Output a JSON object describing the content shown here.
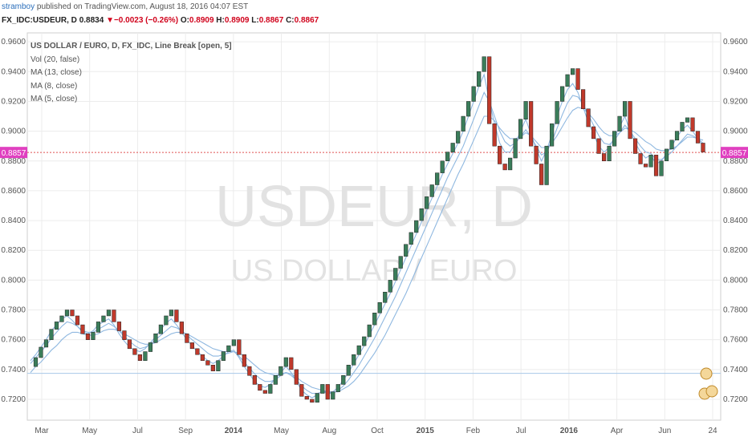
{
  "header": {
    "publisher": "stramboy",
    "published_text": " published on TradingView.com, August 18, 2016 04:07 EST"
  },
  "quote": {
    "symbol": "FX_IDC:USDEUR, D",
    "last": "0.8834",
    "change_arrow": "▼",
    "change": "−0.0023 (−0.26%)",
    "o_label": "O:",
    "o_value": "0.8909",
    "h_label": "H:",
    "h_value": "0.8909",
    "l_label": "L:",
    "l_value": "0.8867",
    "c_label": "C:",
    "c_value": "0.8867"
  },
  "legend": {
    "title": "US DOLLAR / EURO, D, FX_IDC, Line Break [open, 5]",
    "studies": [
      "Vol (20, false)",
      "MA (13, close)",
      "MA (8, close)",
      "MA (5, close)"
    ]
  },
  "watermark": {
    "symbol": "USDEUR, D",
    "name": "US DOLLAR / EURO"
  },
  "price_marker": {
    "value": 0.8857,
    "label": "0.8857",
    "color": "#e040c0"
  },
  "colors": {
    "up": "#3a7d5a",
    "down": "#c0392b",
    "ma": "#8fb8e0",
    "grid": "#ececec",
    "price_line": "#e05050"
  },
  "chart_data": {
    "type": "line break",
    "y_range": [
      0.706,
      0.966
    ],
    "y_ticks": [
      "0.9600",
      "0.9400",
      "0.9200",
      "0.9000",
      "0.8800",
      "0.8600",
      "0.8400",
      "0.8200",
      "0.8000",
      "0.7800",
      "0.7600",
      "0.7400",
      "0.7200"
    ],
    "x_labels": [
      "Mar",
      "May",
      "Jul",
      "Sep",
      "2014",
      "May",
      "Aug",
      "Oct",
      "2015",
      "Feb",
      "Jul",
      "2016",
      "Apr",
      "Jun",
      "24"
    ],
    "x_label_bold": [
      false,
      false,
      false,
      false,
      true,
      false,
      false,
      false,
      true,
      false,
      false,
      true,
      false,
      false,
      false
    ],
    "horizontal_line": 0.7374,
    "series": [
      0.742,
      0.748,
      0.755,
      0.76,
      0.767,
      0.772,
      0.776,
      0.78,
      0.776,
      0.77,
      0.764,
      0.76,
      0.765,
      0.772,
      0.776,
      0.78,
      0.772,
      0.766,
      0.76,
      0.754,
      0.75,
      0.746,
      0.752,
      0.758,
      0.764,
      0.77,
      0.776,
      0.78,
      0.772,
      0.764,
      0.758,
      0.754,
      0.75,
      0.746,
      0.743,
      0.739,
      0.746,
      0.752,
      0.756,
      0.76,
      0.75,
      0.742,
      0.736,
      0.73,
      0.726,
      0.724,
      0.73,
      0.736,
      0.742,
      0.748,
      0.74,
      0.73,
      0.722,
      0.72,
      0.718,
      0.724,
      0.73,
      0.72,
      0.725,
      0.73,
      0.736,
      0.743,
      0.75,
      0.756,
      0.762,
      0.77,
      0.778,
      0.785,
      0.792,
      0.8,
      0.808,
      0.816,
      0.824,
      0.832,
      0.84,
      0.848,
      0.856,
      0.864,
      0.872,
      0.88,
      0.886,
      0.892,
      0.9,
      0.91,
      0.92,
      0.93,
      0.94,
      0.95,
      0.905,
      0.89,
      0.878,
      0.874,
      0.882,
      0.895,
      0.908,
      0.92,
      0.89,
      0.878,
      0.864,
      0.89,
      0.905,
      0.92,
      0.93,
      0.938,
      0.942,
      0.928,
      0.915,
      0.903,
      0.895,
      0.885,
      0.88,
      0.89,
      0.9,
      0.91,
      0.92,
      0.895,
      0.885,
      0.878,
      0.876,
      0.884,
      0.87,
      0.88,
      0.888,
      0.894,
      0.9,
      0.906,
      0.909,
      0.9,
      0.892,
      0.886
    ],
    "ma_fast": [
      0.746,
      0.75,
      0.755,
      0.76,
      0.766,
      0.77,
      0.774,
      0.776,
      0.773,
      0.769,
      0.765,
      0.764,
      0.766,
      0.77,
      0.772,
      0.774,
      0.77,
      0.764,
      0.759,
      0.755,
      0.753,
      0.752,
      0.754,
      0.758,
      0.762,
      0.767,
      0.771,
      0.774,
      0.77,
      0.765,
      0.76,
      0.756,
      0.752,
      0.749,
      0.746,
      0.744,
      0.746,
      0.749,
      0.752,
      0.753,
      0.748,
      0.742,
      0.737,
      0.732,
      0.729,
      0.728,
      0.73,
      0.734,
      0.738,
      0.742,
      0.738,
      0.732,
      0.726,
      0.723,
      0.721,
      0.723,
      0.726,
      0.724,
      0.725,
      0.728,
      0.733,
      0.738,
      0.744,
      0.75,
      0.756,
      0.763,
      0.77,
      0.777,
      0.784,
      0.791,
      0.799,
      0.807,
      0.815,
      0.823,
      0.831,
      0.839,
      0.847,
      0.855,
      0.863,
      0.871,
      0.878,
      0.885,
      0.892,
      0.9,
      0.91,
      0.92,
      0.93,
      0.938,
      0.92,
      0.905,
      0.892,
      0.886,
      0.886,
      0.892,
      0.9,
      0.908,
      0.898,
      0.888,
      0.88,
      0.887,
      0.898,
      0.91,
      0.92,
      0.928,
      0.932,
      0.926,
      0.916,
      0.906,
      0.898,
      0.89,
      0.886,
      0.889,
      0.896,
      0.903,
      0.91,
      0.9,
      0.892,
      0.886,
      0.882,
      0.884,
      0.878,
      0.88,
      0.885,
      0.89,
      0.896,
      0.901,
      0.904,
      0.9,
      0.895,
      0.89
    ],
    "ma_mid": [
      0.744,
      0.748,
      0.752,
      0.756,
      0.761,
      0.765,
      0.769,
      0.772,
      0.771,
      0.769,
      0.766,
      0.765,
      0.765,
      0.767,
      0.769,
      0.771,
      0.769,
      0.766,
      0.762,
      0.759,
      0.756,
      0.754,
      0.755,
      0.757,
      0.76,
      0.763,
      0.766,
      0.769,
      0.768,
      0.766,
      0.763,
      0.76,
      0.757,
      0.754,
      0.751,
      0.749,
      0.749,
      0.75,
      0.751,
      0.752,
      0.749,
      0.745,
      0.741,
      0.737,
      0.734,
      0.732,
      0.732,
      0.733,
      0.736,
      0.738,
      0.736,
      0.733,
      0.729,
      0.726,
      0.724,
      0.724,
      0.725,
      0.724,
      0.724,
      0.726,
      0.729,
      0.733,
      0.738,
      0.743,
      0.749,
      0.755,
      0.761,
      0.768,
      0.775,
      0.782,
      0.789,
      0.797,
      0.805,
      0.813,
      0.821,
      0.829,
      0.837,
      0.845,
      0.853,
      0.861,
      0.869,
      0.876,
      0.883,
      0.89,
      0.899,
      0.908,
      0.917,
      0.926,
      0.92,
      0.91,
      0.9,
      0.893,
      0.89,
      0.892,
      0.896,
      0.901,
      0.896,
      0.89,
      0.884,
      0.886,
      0.893,
      0.902,
      0.911,
      0.919,
      0.924,
      0.923,
      0.918,
      0.911,
      0.904,
      0.897,
      0.892,
      0.891,
      0.894,
      0.899,
      0.904,
      0.9,
      0.895,
      0.89,
      0.886,
      0.885,
      0.881,
      0.881,
      0.883,
      0.886,
      0.89,
      0.894,
      0.898,
      0.897,
      0.895,
      0.892
    ],
    "ma_slow": [
      0.738,
      0.742,
      0.745,
      0.749,
      0.753,
      0.756,
      0.76,
      0.763,
      0.765,
      0.765,
      0.764,
      0.763,
      0.763,
      0.764,
      0.766,
      0.767,
      0.767,
      0.766,
      0.764,
      0.762,
      0.76,
      0.758,
      0.757,
      0.757,
      0.758,
      0.76,
      0.762,
      0.764,
      0.765,
      0.765,
      0.764,
      0.762,
      0.76,
      0.758,
      0.756,
      0.754,
      0.753,
      0.752,
      0.752,
      0.752,
      0.751,
      0.749,
      0.746,
      0.743,
      0.74,
      0.738,
      0.737,
      0.736,
      0.737,
      0.738,
      0.737,
      0.735,
      0.732,
      0.73,
      0.728,
      0.727,
      0.726,
      0.725,
      0.725,
      0.725,
      0.727,
      0.729,
      0.732,
      0.736,
      0.741,
      0.746,
      0.751,
      0.757,
      0.763,
      0.77,
      0.777,
      0.784,
      0.791,
      0.799,
      0.807,
      0.815,
      0.823,
      0.831,
      0.839,
      0.847,
      0.855,
      0.863,
      0.871,
      0.878,
      0.886,
      0.894,
      0.902,
      0.91,
      0.91,
      0.907,
      0.902,
      0.898,
      0.895,
      0.895,
      0.896,
      0.899,
      0.897,
      0.893,
      0.889,
      0.889,
      0.892,
      0.897,
      0.903,
      0.909,
      0.914,
      0.916,
      0.915,
      0.912,
      0.908,
      0.903,
      0.899,
      0.897,
      0.897,
      0.899,
      0.902,
      0.901,
      0.899,
      0.896,
      0.893,
      0.891,
      0.888,
      0.887,
      0.887,
      0.888,
      0.89,
      0.893,
      0.896,
      0.896,
      0.895,
      0.894
    ]
  }
}
